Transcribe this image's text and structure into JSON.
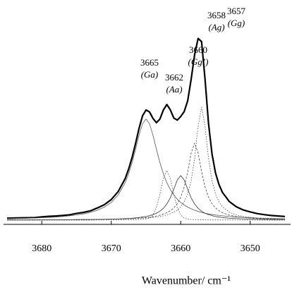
{
  "chart_data": {
    "type": "line",
    "xlabel": "Wavenumber/ cm⁻¹",
    "xlim": [
      3685,
      3645
    ],
    "xticks": [
      3680,
      3670,
      3660,
      3650
    ],
    "ylim": [
      -2.5,
      110
    ],
    "x": [
      3685,
      3684,
      3683,
      3682,
      3681,
      3680,
      3679,
      3678,
      3677,
      3676,
      3675,
      3674,
      3673,
      3672,
      3671,
      3670,
      3669,
      3668,
      3667.5,
      3667,
      3666.5,
      3666,
      3665.5,
      3665,
      3664.5,
      3664,
      3663.5,
      3663,
      3662.5,
      3662,
      3661.5,
      3661,
      3660.5,
      3660,
      3659.5,
      3659,
      3658.5,
      3658,
      3657.5,
      3657,
      3656.5,
      3656,
      3655.5,
      3655,
      3654.5,
      3654,
      3653,
      3652,
      3651,
      3650,
      3649,
      3648,
      3647,
      3646,
      3645
    ],
    "series": [
      {
        "color": "#000000",
        "width": 2.2,
        "dash": "solid",
        "values": [
          1.1,
          1.2,
          1.3,
          1.4,
          1.5,
          1.9,
          2.2,
          2.4,
          2.7,
          3.1,
          3.9,
          4.5,
          5.4,
          7.1,
          9.0,
          12.0,
          16.7,
          24.2,
          29.8,
          36.6,
          44.8,
          53.6,
          60.9,
          64.3,
          63.2,
          59.4,
          56.9,
          59.0,
          64.3,
          67.5,
          64.4,
          59.6,
          58.4,
          60.5,
          63.4,
          69.7,
          82.3,
          96.6,
          106.1,
          104.2,
          82.2,
          56.4,
          38.7,
          27.6,
          20.8,
          16.2,
          10.8,
          7.8,
          5.9,
          4.8,
          3.8,
          3.2,
          2.7,
          2.4,
          2.1
        ]
      },
      {
        "color": "#555555",
        "width": 0.8,
        "dash": "solid",
        "values": [
          0.8,
          0.9,
          1.0,
          1.1,
          1.2,
          1.4,
          1.6,
          1.8,
          2.1,
          2.5,
          3.0,
          3.6,
          4.5,
          5.8,
          7.6,
          10.3,
          14.7,
          21.8,
          27.0,
          33.6,
          41.4,
          49.6,
          56.3,
          59,
          56.3,
          49.6,
          41.4,
          33.6,
          27.0,
          21.8,
          17.8,
          14.7,
          12.2,
          10.3,
          8.8,
          7.6,
          6.6,
          5.8,
          5.1,
          4.5,
          4.0,
          3.6,
          3.3,
          3.0,
          2.7,
          2.5,
          2.1,
          1.8,
          1.6,
          1.4,
          1.2,
          1.1,
          1.0,
          0.9,
          0.8
        ]
      },
      {
        "color": "#444444",
        "width": 0.8,
        "dash": "dotted",
        "values": [
          0,
          0,
          0,
          0,
          0,
          0,
          0,
          0,
          0,
          0,
          0,
          0,
          0,
          0.1,
          0.1,
          0.1,
          0.1,
          0.1,
          0.2,
          0.2,
          0.2,
          0.3,
          0.4,
          0.5,
          1.2,
          3.0,
          7.3,
          15.2,
          24.4,
          29,
          24.4,
          15.2,
          7.3,
          3.0,
          1.2,
          0.5,
          0.4,
          0.3,
          0.2,
          0.2,
          0.2,
          0.1,
          0.1,
          0.1,
          0.1,
          0.1,
          0.1,
          0.1,
          0,
          0,
          0,
          0,
          0,
          0,
          0
        ]
      },
      {
        "color": "#333333",
        "width": 0.8,
        "dash": "solid",
        "values": [
          0.1,
          0.1,
          0.1,
          0.1,
          0.1,
          0.1,
          0.2,
          0.2,
          0.2,
          0.2,
          0.3,
          0.3,
          0.3,
          0.4,
          0.5,
          0.6,
          0.7,
          0.9,
          1.0,
          1.1,
          1.3,
          1.5,
          1.8,
          2.1,
          2.6,
          3.2,
          4.0,
          5.2,
          6.9,
          9.4,
          13.0,
          18.0,
          23.4,
          26,
          23.4,
          18.0,
          13.0,
          9.4,
          6.9,
          5.2,
          4.0,
          3.2,
          2.6,
          2.1,
          1.8,
          1.5,
          1.1,
          0.9,
          0.7,
          0.6,
          0.5,
          0.4,
          0.3,
          0.3,
          0.3
        ]
      },
      {
        "color": "#444444",
        "width": 0.8,
        "dash": "dashed",
        "values": [
          0.1,
          0.1,
          0.1,
          0.1,
          0.1,
          0.2,
          0.2,
          0.2,
          0.2,
          0.2,
          0.3,
          0.3,
          0.3,
          0.4,
          0.4,
          0.5,
          0.6,
          0.7,
          0.8,
          0.9,
          1.0,
          1.2,
          1.3,
          1.5,
          1.7,
          2.0,
          2.4,
          2.9,
          3.5,
          4.3,
          5.5,
          7.1,
          9.6,
          13.4,
          19.3,
          28.3,
          39.2,
          45,
          39.2,
          28.3,
          19.3,
          13.4,
          9.6,
          7.1,
          5.5,
          4.3,
          2.9,
          2.0,
          1.5,
          1.2,
          0.9,
          0.7,
          0.6,
          0.5,
          0.4
        ]
      },
      {
        "color": "#444444",
        "width": 0.8,
        "dash": "dotted",
        "values": [
          0.1,
          0.1,
          0.1,
          0.1,
          0.1,
          0.2,
          0.2,
          0.2,
          0.2,
          0.2,
          0.3,
          0.3,
          0.3,
          0.4,
          0.4,
          0.5,
          0.6,
          0.7,
          0.8,
          0.8,
          0.9,
          1.0,
          1.1,
          1.2,
          1.4,
          1.6,
          1.8,
          2.1,
          2.5,
          3.0,
          3.7,
          4.6,
          5.9,
          7.8,
          10.7,
          15.3,
          23.1,
          36.1,
          54.7,
          66,
          54.7,
          36.1,
          23.1,
          15.3,
          10.7,
          7.8,
          4.6,
          3.0,
          2.1,
          1.6,
          1.2,
          1.0,
          0.8,
          0.7,
          0.6
        ]
      }
    ],
    "annotations": [
      {
        "wavenumber": "3665",
        "assignment": "(Ga)"
      },
      {
        "wavenumber": "3662",
        "assignment": "(Aa)"
      },
      {
        "wavenumber": "3660",
        "assignment": "(Gg’)"
      },
      {
        "wavenumber": "3658",
        "assignment": "(Ag)"
      },
      {
        "wavenumber": "3657",
        "assignment": "(Gg)"
      }
    ]
  }
}
